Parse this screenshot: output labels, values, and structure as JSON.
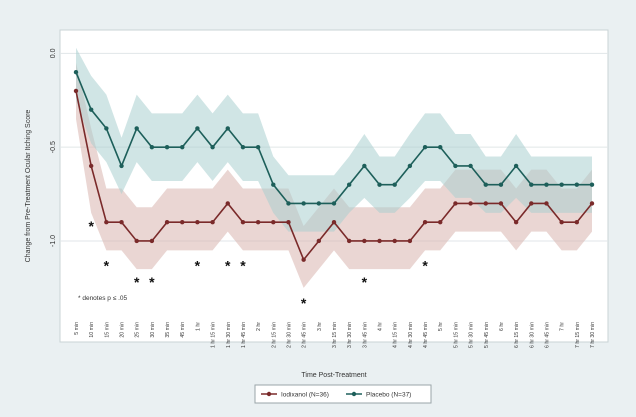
{
  "chart_data": {
    "type": "line",
    "title": "",
    "xlabel": "Time Post-Treatment",
    "ylabel": "Change from Pre-Treatment Ocular Itching Score",
    "ylim": [
      -1.4,
      0.05
    ],
    "yticks": [
      "0.0",
      "-0.5",
      "-1.0"
    ],
    "ytick_values": [
      0,
      -0.5,
      -1.0
    ],
    "grid": true,
    "legend_position": "bottom",
    "categories": [
      "5 min",
      "10 min",
      "15 min",
      "20 min",
      "25 min",
      "30 min",
      "35 min",
      "45 min",
      "1 hr",
      "1 hr 15 min",
      "1 hr 30 min",
      "1 hr 45 min",
      "2 hr",
      "2 hr 15 min",
      "2 hr 30 min",
      "2 hr 45 min",
      "3 hr",
      "3 hr 15 min",
      "3 hr 30 min",
      "3 hr 45 min",
      "4 hr",
      "4 hr 15 min",
      "4 hr 30 min",
      "4 hr 45 min",
      "5 hr",
      "5 hr 15 min",
      "5 hr 30 min",
      "5 hr 45 min",
      "6 hr",
      "6 hr 15 min",
      "6 hr 30 min",
      "6 hr 45 min",
      "7 hr",
      "7 hr 15 min",
      "7 hr 30 min"
    ],
    "series": [
      {
        "name": "Iodixanol (N=36)",
        "color": "#7a2a2a",
        "band_color": "#d8b4ae",
        "values": [
          -0.2,
          -0.6,
          -0.9,
          -0.9,
          -1.0,
          -1.0,
          -0.9,
          -0.9,
          -0.9,
          -0.9,
          -0.8,
          -0.9,
          -0.9,
          -0.9,
          -0.9,
          -1.1,
          -1.0,
          -0.9,
          -1.0,
          -1.0,
          -1.0,
          -1.0,
          -1.0,
          -0.9,
          -0.9,
          -0.8,
          -0.8,
          -0.8,
          -0.8,
          -0.9,
          -0.8,
          -0.8,
          -0.9,
          -0.9,
          -0.8
        ],
        "lower": [
          -0.35,
          -0.85,
          -1.05,
          -1.05,
          -1.15,
          -1.15,
          -1.05,
          -1.05,
          -1.05,
          -1.05,
          -0.95,
          -1.05,
          -1.05,
          -1.05,
          -1.05,
          -1.25,
          -1.15,
          -1.05,
          -1.15,
          -1.15,
          -1.15,
          -1.15,
          -1.15,
          -1.05,
          -1.05,
          -0.95,
          -0.95,
          -0.95,
          -0.95,
          -1.05,
          -0.95,
          -0.95,
          -1.05,
          -1.05,
          -0.95
        ],
        "upper": [
          -0.05,
          -0.4,
          -0.72,
          -0.72,
          -0.82,
          -0.82,
          -0.72,
          -0.72,
          -0.72,
          -0.72,
          -0.62,
          -0.72,
          -0.72,
          -0.72,
          -0.72,
          -0.92,
          -0.82,
          -0.72,
          -0.82,
          -0.82,
          -0.82,
          -0.82,
          -0.82,
          -0.72,
          -0.72,
          -0.62,
          -0.62,
          -0.62,
          -0.62,
          -0.72,
          -0.62,
          -0.62,
          -0.72,
          -0.72,
          -0.62
        ]
      },
      {
        "name": "Placebo (N=37)",
        "color": "#1d5f5a",
        "band_color": "#a9d0cf",
        "values": [
          -0.1,
          -0.3,
          -0.4,
          -0.6,
          -0.4,
          -0.5,
          -0.5,
          -0.5,
          -0.4,
          -0.5,
          -0.4,
          -0.5,
          -0.5,
          -0.7,
          -0.8,
          -0.8,
          -0.8,
          -0.8,
          -0.7,
          -0.6,
          -0.7,
          -0.7,
          -0.6,
          -0.5,
          -0.5,
          -0.6,
          -0.6,
          -0.7,
          -0.7,
          -0.6,
          -0.7,
          -0.7,
          -0.7,
          -0.7,
          -0.7
        ],
        "lower": [
          -0.25,
          -0.48,
          -0.58,
          -0.75,
          -0.58,
          -0.68,
          -0.68,
          -0.68,
          -0.58,
          -0.68,
          -0.58,
          -0.68,
          -0.68,
          -0.85,
          -0.95,
          -0.95,
          -0.95,
          -0.95,
          -0.85,
          -0.77,
          -0.85,
          -0.85,
          -0.77,
          -0.68,
          -0.68,
          -0.77,
          -0.77,
          -0.85,
          -0.85,
          -0.77,
          -0.85,
          -0.85,
          -0.85,
          -0.85,
          -0.85
        ],
        "upper": [
          0.03,
          -0.12,
          -0.22,
          -0.45,
          -0.22,
          -0.32,
          -0.32,
          -0.32,
          -0.22,
          -0.32,
          -0.22,
          -0.32,
          -0.32,
          -0.55,
          -0.65,
          -0.65,
          -0.65,
          -0.65,
          -0.55,
          -0.43,
          -0.55,
          -0.55,
          -0.43,
          -0.32,
          -0.32,
          -0.43,
          -0.43,
          -0.55,
          -0.55,
          -0.43,
          -0.55,
          -0.55,
          -0.55,
          -0.55,
          -0.55
        ]
      }
    ],
    "significance": {
      "symbol": "*",
      "note": "* denotes p ≤ .05",
      "marks": [
        {
          "category_index": 1,
          "y": -0.92
        },
        {
          "category_index": 2,
          "y": -1.13
        },
        {
          "category_index": 4,
          "y": -1.22
        },
        {
          "category_index": 5,
          "y": -1.22
        },
        {
          "category_index": 8,
          "y": -1.13
        },
        {
          "category_index": 10,
          "y": -1.13
        },
        {
          "category_index": 11,
          "y": -1.13
        },
        {
          "category_index": 15,
          "y": -1.33
        },
        {
          "category_index": 19,
          "y": -1.22
        },
        {
          "category_index": 23,
          "y": -1.13
        }
      ]
    }
  }
}
